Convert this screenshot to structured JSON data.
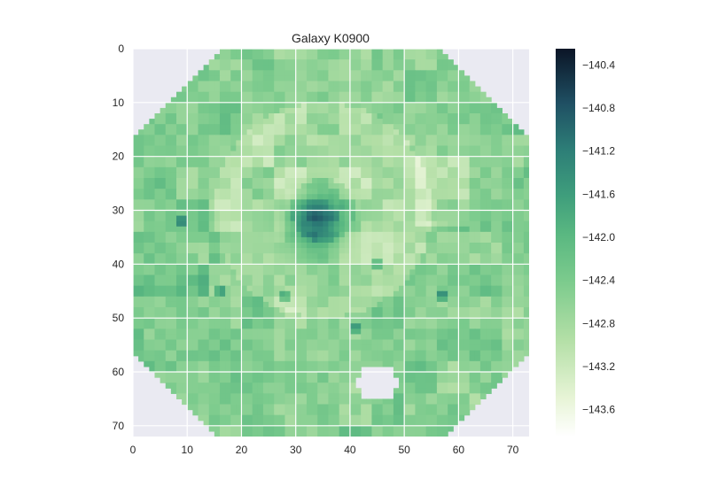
{
  "chart_data": {
    "type": "heatmap",
    "title": "Galaxy K0900",
    "xlabel": "",
    "ylabel": "",
    "xlim": [
      0,
      73
    ],
    "ylim": [
      0,
      72
    ],
    "y_inverted": true,
    "x_ticks": [
      0,
      10,
      20,
      30,
      40,
      50,
      60,
      70
    ],
    "y_ticks": [
      0,
      10,
      20,
      30,
      40,
      50,
      60,
      70
    ],
    "grid": true,
    "colormap": "green-navy sequential (light=low, dark=high)",
    "colorbar": {
      "range": [
        -143.85,
        -140.25
      ],
      "ticks": [
        -140.4,
        -140.8,
        -141.2,
        -141.6,
        -142.0,
        -142.4,
        -142.8,
        -143.2,
        -143.6
      ],
      "tick_labels": [
        "−140.4",
        "−140.8",
        "−141.2",
        "−141.6",
        "−142.0",
        "−142.4",
        "−142.8",
        "−143.2",
        "−143.6"
      ]
    },
    "value_summary": {
      "typical_background": -142.4,
      "center_peak": -141.0,
      "center_position": [
        34,
        32
      ],
      "light_regions": [
        -143.1,
        -143.4
      ],
      "masked_hole_center": [
        45,
        62
      ]
    }
  },
  "colors": {
    "axes_background": "#eaeaf2",
    "grid": "#ffffff",
    "text": "#262626",
    "cmap_light": "#f7fcef",
    "cmap_mid": "#5ab881",
    "cmap_dark": "#0b1526"
  }
}
